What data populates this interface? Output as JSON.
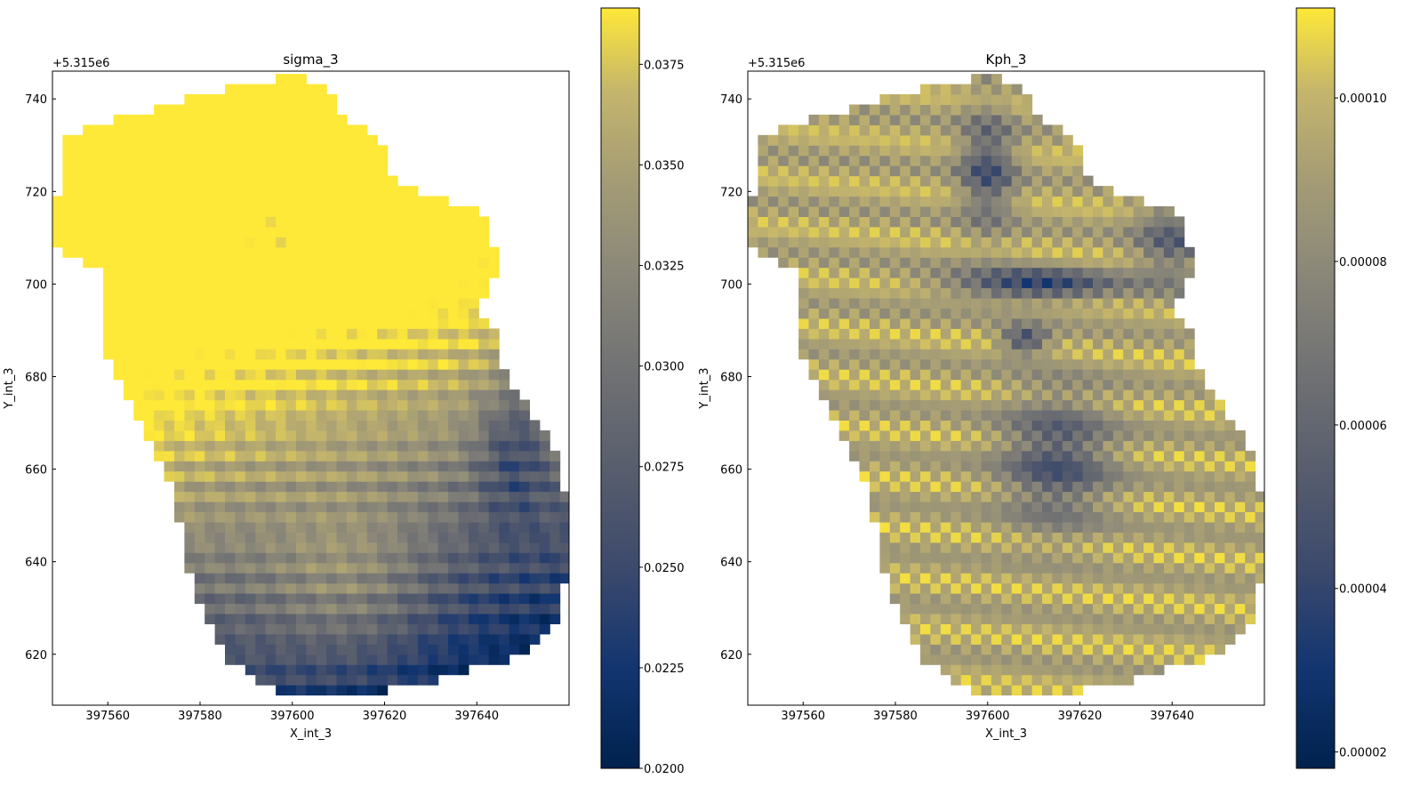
{
  "chart_data": [
    {
      "type": "heatmap",
      "title": "sigma_3",
      "xlabel": "X_int_3",
      "ylabel": "Y_int_3",
      "x_ticks": [
        "397560",
        "397580",
        "397600",
        "397620",
        "397640"
      ],
      "x_tick_values": [
        397560,
        397580,
        397600,
        397620,
        397640
      ],
      "y_ticks": [
        "620",
        "640",
        "660",
        "680",
        "700",
        "720",
        "740"
      ],
      "y_tick_values": [
        620,
        640,
        660,
        680,
        700,
        720,
        740
      ],
      "y_offset_text": "+5.315e6",
      "xlim": [
        397548,
        397660
      ],
      "ylim": [
        609,
        746
      ],
      "colormap": "cividis",
      "colorbar": {
        "min": 0.02,
        "max": 0.0389,
        "ticks": [
          "0.0200",
          "0.0225",
          "0.0250",
          "0.0275",
          "0.0300",
          "0.0325",
          "0.0350",
          "0.0375"
        ],
        "tick_values": [
          0.02,
          0.0225,
          0.025,
          0.0275,
          0.03,
          0.0325,
          0.035,
          0.0375
        ]
      },
      "grid": false
    },
    {
      "type": "heatmap",
      "title": "Kph_3",
      "xlabel": "X_int_3",
      "ylabel": "Y_int_3",
      "x_ticks": [
        "397560",
        "397580",
        "397600",
        "397620",
        "397640"
      ],
      "x_tick_values": [
        397560,
        397580,
        397600,
        397620,
        397640
      ],
      "y_ticks": [
        "620",
        "640",
        "660",
        "680",
        "700",
        "720",
        "740"
      ],
      "y_tick_values": [
        620,
        640,
        660,
        680,
        700,
        720,
        740
      ],
      "y_offset_text": "+5.315e6",
      "xlim": [
        397548,
        397660
      ],
      "ylim": [
        609,
        746
      ],
      "colormap": "cividis",
      "colorbar": {
        "min": 1.8e-05,
        "max": 0.000111,
        "ticks": [
          "0.00002",
          "0.00004",
          "0.00006",
          "0.00008",
          "0.00010"
        ],
        "tick_values": [
          2e-05,
          4e-05,
          6e-05,
          8e-05,
          0.0001
        ]
      },
      "grid": false
    }
  ],
  "colors": {
    "cividis_low": "#00224e",
    "cividis_mid": "#7c7b78",
    "cividis_high": "#fee838"
  }
}
